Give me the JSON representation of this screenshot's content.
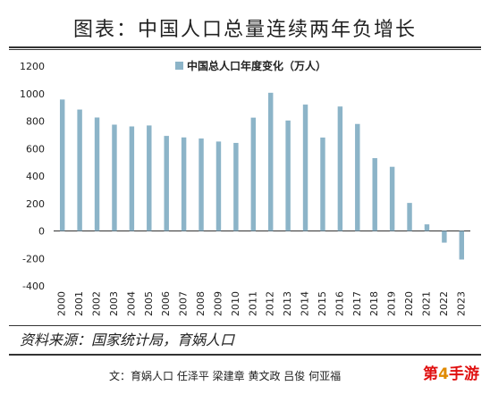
{
  "figure": {
    "title": "图表：中国人口总量连续两年负增长",
    "source": "资料来源：国家统计局，育娲人口",
    "authors": "文：育娲人口 任泽平 梁建章 黄文政 吕俊 何亚福",
    "badge_prefix": "第",
    "badge_num": "4",
    "badge_suffix": "手游"
  },
  "chart_data": {
    "type": "bar",
    "legend_label": "中国总人口年度变化（万人）",
    "legend_position": "top-center",
    "grid": false,
    "bar_color": "#8cb4c8",
    "ylim": [
      -400,
      1200
    ],
    "yticks": [
      -400,
      -200,
      0,
      200,
      400,
      600,
      800,
      1000,
      1200
    ],
    "categories": [
      "2000",
      "2001",
      "2002",
      "2003",
      "2004",
      "2005",
      "2006",
      "2007",
      "2008",
      "2009",
      "2010",
      "2011",
      "2012",
      "2013",
      "2014",
      "2015",
      "2016",
      "2017",
      "2018",
      "2019",
      "2020",
      "2021",
      "2022",
      "2023"
    ],
    "values": [
      957,
      884,
      826,
      774,
      761,
      768,
      692,
      681,
      673,
      651,
      641,
      825,
      1006,
      804,
      920,
      680,
      906,
      779,
      530,
      467,
      204,
      48,
      -85,
      -208
    ]
  }
}
